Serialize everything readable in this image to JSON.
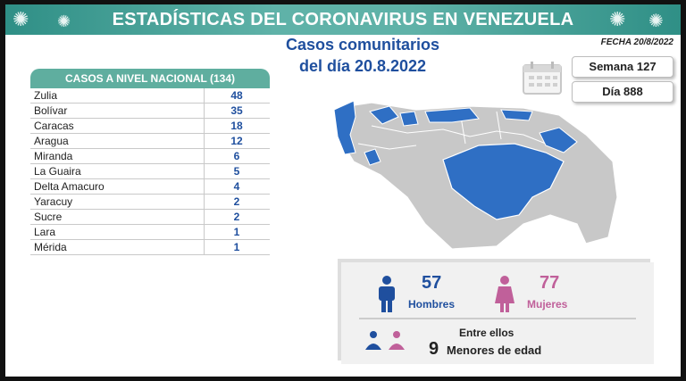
{
  "header": {
    "title": "ESTADÍSTICAS DEL CORONAVIRUS EN VENEZUELA"
  },
  "subtitle": {
    "line1": "Casos comunitarios",
    "line2": "del día 20.8.2022"
  },
  "fecha": "FECHA 20/8/2022",
  "semana": "Semana 127",
  "dia": "Día 888",
  "table": {
    "header": "CASOS A NIVEL NACIONAL  (134)",
    "rows": [
      {
        "name": "Zulia",
        "value": "48"
      },
      {
        "name": "Bolívar",
        "value": "35"
      },
      {
        "name": "Caracas",
        "value": "18"
      },
      {
        "name": "Aragua",
        "value": "12"
      },
      {
        "name": "Miranda",
        "value": "6"
      },
      {
        "name": "La Guaira",
        "value": "5"
      },
      {
        "name": "Delta Amacuro",
        "value": "4"
      },
      {
        "name": "Yaracuy",
        "value": "2"
      },
      {
        "name": "Sucre",
        "value": "2"
      },
      {
        "name": "Lara",
        "value": "1"
      },
      {
        "name": "Mérida",
        "value": "1"
      }
    ]
  },
  "stats": {
    "hombres_count": "57",
    "hombres_label": "Hombres",
    "mujeres_count": "77",
    "mujeres_label": "Mujeres",
    "entre_ellos": "Entre ellos",
    "menores_count": "9",
    "menores_label": "Menores de edad"
  },
  "colors": {
    "banner": "#5fb2a8",
    "highlight_states": "#2f6fc4",
    "other_states": "#c8c8c8",
    "men": "#1f4f9e",
    "women": "#c0609a"
  }
}
